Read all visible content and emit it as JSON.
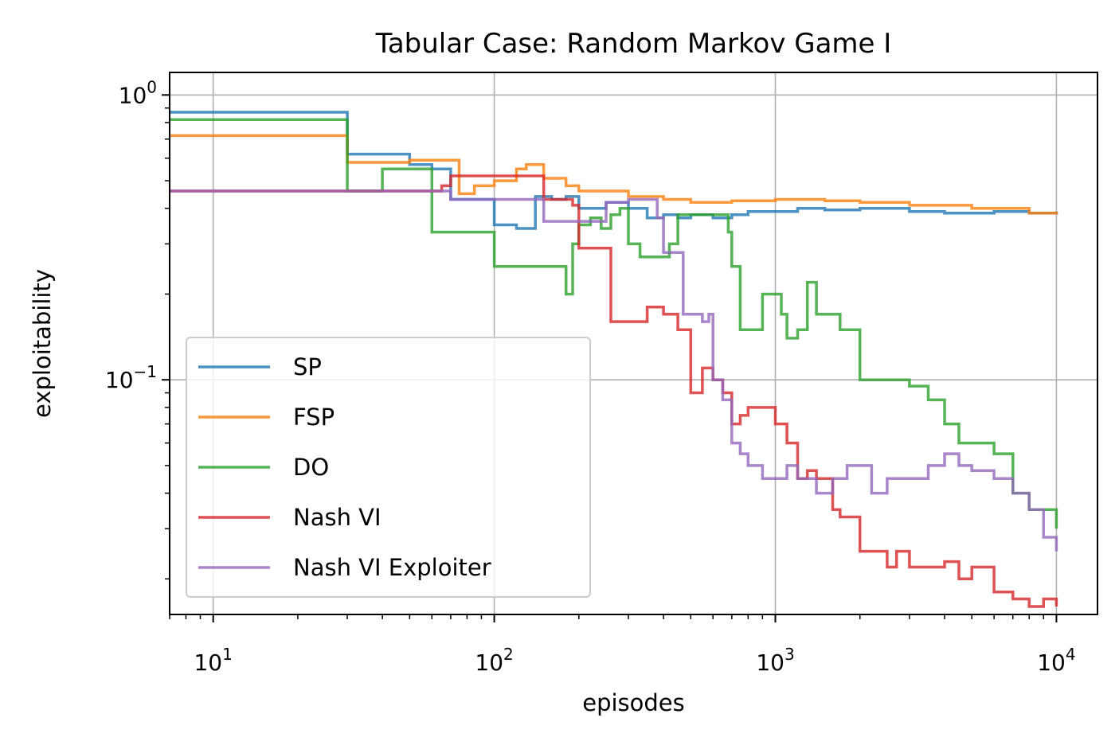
{
  "chart_data": {
    "type": "line",
    "title": "Tabular Case: Random Markov Game I",
    "xlabel": "episodes",
    "ylabel": "exploitability",
    "x_scale": "log",
    "y_scale": "log",
    "xlim": [
      7,
      14000
    ],
    "ylim": [
      0.015,
      1.2
    ],
    "x_ticks": [
      {
        "value": 10,
        "base": "10",
        "exp": "1"
      },
      {
        "value": 100,
        "base": "10",
        "exp": "2"
      },
      {
        "value": 1000,
        "base": "10",
        "exp": "3"
      },
      {
        "value": 10000,
        "base": "10",
        "exp": "4"
      }
    ],
    "y_ticks": [
      {
        "value": 1,
        "base": "10",
        "exp": "0"
      },
      {
        "value": 0.1,
        "base": "10",
        "exp": "−1"
      }
    ],
    "grid": true,
    "legend_position": "lower-left",
    "series": [
      {
        "name": "SP",
        "color": "#1f77b4",
        "x": [
          7,
          20,
          30,
          40,
          50,
          60,
          70,
          85,
          100,
          120,
          140,
          160,
          180,
          200,
          250,
          300,
          350,
          400,
          450,
          500,
          600,
          700,
          800,
          1000,
          1200,
          1500,
          2000,
          3000,
          4000,
          6000,
          8000,
          10000
        ],
        "y": [
          0.87,
          0.87,
          0.62,
          0.62,
          0.57,
          0.55,
          0.43,
          0.43,
          0.35,
          0.34,
          0.44,
          0.43,
          0.44,
          0.4,
          0.42,
          0.4,
          0.37,
          0.38,
          0.37,
          0.38,
          0.37,
          0.38,
          0.39,
          0.39,
          0.4,
          0.395,
          0.4,
          0.39,
          0.385,
          0.39,
          0.385,
          0.39
        ]
      },
      {
        "name": "FSP",
        "color": "#ff7f0e",
        "x": [
          7,
          20,
          30,
          50,
          65,
          75,
          85,
          100,
          120,
          130,
          150,
          180,
          200,
          300,
          400,
          500,
          700,
          1000,
          1500,
          2000,
          3000,
          5000,
          8000,
          10000
        ],
        "y": [
          0.72,
          0.72,
          0.58,
          0.59,
          0.59,
          0.45,
          0.48,
          0.5,
          0.55,
          0.57,
          0.51,
          0.48,
          0.46,
          0.44,
          0.43,
          0.42,
          0.425,
          0.43,
          0.425,
          0.42,
          0.41,
          0.4,
          0.385,
          0.39
        ]
      },
      {
        "name": "DO",
        "color": "#2ca02c",
        "x": [
          7,
          20,
          30,
          40,
          50,
          60,
          80,
          100,
          150,
          170,
          180,
          190,
          200,
          220,
          240,
          260,
          280,
          300,
          330,
          360,
          420,
          450,
          500,
          640,
          680,
          700,
          750,
          800,
          900,
          1000,
          1050,
          1100,
          1200,
          1300,
          1400,
          1600,
          1700,
          1800,
          2000,
          2200,
          2500,
          3000,
          3500,
          4000,
          4500,
          5000,
          6000,
          7000,
          8000,
          9000,
          10000
        ],
        "y": [
          0.82,
          0.82,
          0.46,
          0.55,
          0.55,
          0.33,
          0.33,
          0.25,
          0.25,
          0.25,
          0.2,
          0.3,
          0.35,
          0.37,
          0.34,
          0.38,
          0.4,
          0.3,
          0.27,
          0.27,
          0.3,
          0.38,
          0.38,
          0.38,
          0.33,
          0.25,
          0.15,
          0.15,
          0.2,
          0.2,
          0.17,
          0.14,
          0.15,
          0.22,
          0.17,
          0.17,
          0.15,
          0.15,
          0.1,
          0.1,
          0.1,
          0.095,
          0.085,
          0.07,
          0.06,
          0.06,
          0.055,
          0.04,
          0.035,
          0.035,
          0.03
        ]
      },
      {
        "name": "Nash VI",
        "color": "#d62728",
        "x": [
          7,
          60,
          65,
          70,
          120,
          150,
          160,
          190,
          200,
          250,
          260,
          300,
          350,
          400,
          450,
          500,
          550,
          600,
          650,
          700,
          750,
          800,
          900,
          1000,
          1100,
          1200,
          1300,
          1400,
          1500,
          1600,
          1700,
          2000,
          2200,
          2500,
          2700,
          3000,
          3500,
          4000,
          4500,
          5000,
          6000,
          7000,
          8000,
          9000,
          10000
        ],
        "y": [
          0.46,
          0.46,
          0.48,
          0.52,
          0.52,
          0.43,
          0.43,
          0.41,
          0.29,
          0.29,
          0.16,
          0.16,
          0.18,
          0.17,
          0.15,
          0.09,
          0.11,
          0.1,
          0.09,
          0.07,
          0.075,
          0.08,
          0.08,
          0.07,
          0.06,
          0.045,
          0.048,
          0.045,
          0.045,
          0.035,
          0.033,
          0.025,
          0.025,
          0.022,
          0.025,
          0.022,
          0.022,
          0.023,
          0.02,
          0.022,
          0.018,
          0.017,
          0.016,
          0.017,
          0.016
        ]
      },
      {
        "name": "Nash VI Exploiter",
        "color": "#9467bd",
        "x": [
          7,
          60,
          70,
          130,
          150,
          200,
          250,
          280,
          300,
          380,
          400,
          450,
          470,
          550,
          580,
          600,
          650,
          700,
          750,
          800,
          900,
          1000,
          1100,
          1200,
          1400,
          1600,
          1800,
          2000,
          2200,
          2500,
          3000,
          3500,
          4000,
          4500,
          5000,
          6000,
          7000,
          8000,
          9000,
          10000
        ],
        "y": [
          0.46,
          0.46,
          0.43,
          0.43,
          0.36,
          0.36,
          0.42,
          0.42,
          0.43,
          0.37,
          0.28,
          0.28,
          0.17,
          0.16,
          0.17,
          0.1,
          0.085,
          0.06,
          0.055,
          0.05,
          0.045,
          0.045,
          0.05,
          0.045,
          0.04,
          0.045,
          0.05,
          0.05,
          0.04,
          0.045,
          0.045,
          0.05,
          0.055,
          0.05,
          0.048,
          0.045,
          0.04,
          0.035,
          0.028,
          0.025
        ]
      }
    ]
  }
}
